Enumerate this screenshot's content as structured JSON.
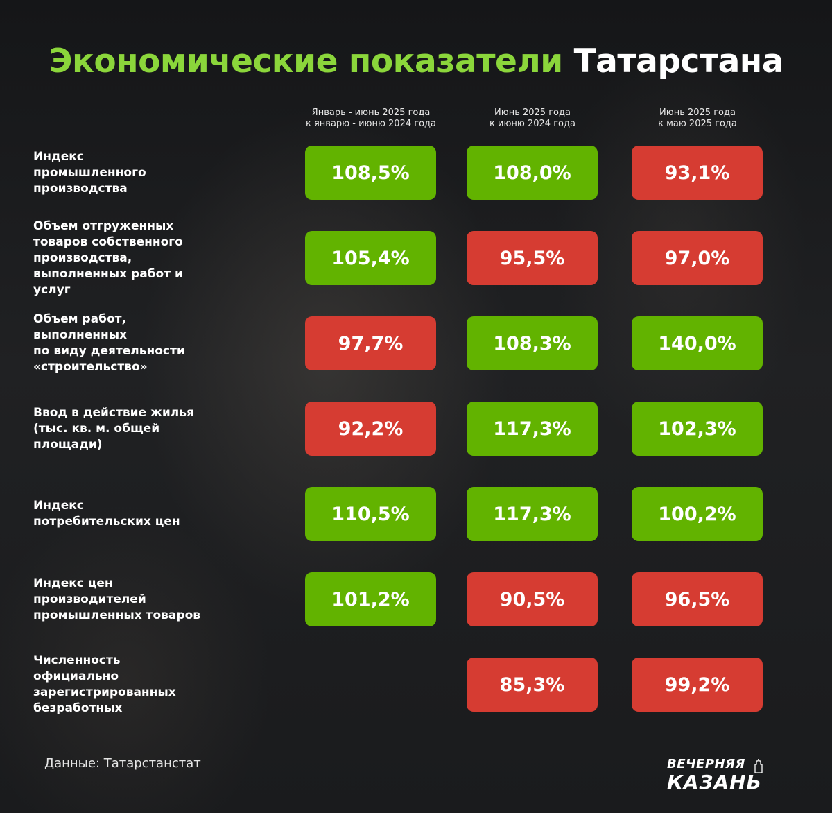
{
  "title": {
    "part1": "Экономические показатели",
    "part2": "Татарстана"
  },
  "colors": {
    "green": "#62b300",
    "red": "#d63c32",
    "title_green": "#8bd63b"
  },
  "chart_data": {
    "type": "table",
    "title": "Экономические показатели Татарстана",
    "columns": [
      {
        "line1": "Январь - июнь 2025 года",
        "line2": "к январю - июню 2024 года"
      },
      {
        "line1": "Июнь 2025 года",
        "line2": "к июню 2024 года"
      },
      {
        "line1": "Июнь 2025 года",
        "line2": "к маю 2025 года"
      }
    ],
    "rows": [
      {
        "label": "Индекс\nпромышленного\nпроизводства",
        "cells": [
          {
            "text": "108,5%",
            "status": "green"
          },
          {
            "text": "108,0%",
            "status": "green"
          },
          {
            "text": "93,1%",
            "status": "red"
          }
        ]
      },
      {
        "label": "Объем отгруженных\nтоваров собственного\nпроизводства,\nвыполненных работ и\nуслуг",
        "cells": [
          {
            "text": "105,4%",
            "status": "green"
          },
          {
            "text": "95,5%",
            "status": "red"
          },
          {
            "text": "97,0%",
            "status": "red"
          }
        ]
      },
      {
        "label": "Объем работ,\nвыполненных\nпо виду деятельности\n«строительство»",
        "cells": [
          {
            "text": "97,7%",
            "status": "red"
          },
          {
            "text": "108,3%",
            "status": "green"
          },
          {
            "text": "140,0%",
            "status": "green"
          }
        ]
      },
      {
        "label": "Ввод в действие жилья\n(тыс. кв. м. общей\nплощади)",
        "cells": [
          {
            "text": "92,2%",
            "status": "red"
          },
          {
            "text": "117,3%",
            "status": "green"
          },
          {
            "text": "102,3%",
            "status": "green"
          }
        ]
      },
      {
        "label": "Индекс\nпотребительских цен",
        "cells": [
          {
            "text": "110,5%",
            "status": "green"
          },
          {
            "text": "117,3%",
            "status": "green"
          },
          {
            "text": "100,2%",
            "status": "green"
          }
        ]
      },
      {
        "label": "Индекс цен\nпроизводителей\nпромышленных товаров",
        "cells": [
          {
            "text": "101,2%",
            "status": "green"
          },
          {
            "text": "90,5%",
            "status": "red"
          },
          {
            "text": "96,5%",
            "status": "red"
          }
        ]
      },
      {
        "label": "Численность\nофициально\nзарегистрированных\nбезработных",
        "cells": [
          null,
          {
            "text": "85,3%",
            "status": "red"
          },
          {
            "text": "99,2%",
            "status": "red"
          }
        ]
      }
    ]
  },
  "footer": {
    "source": "Данные: Татарстанстат",
    "logo_line1": "ВЕЧЕРНЯЯ",
    "logo_line2": "КАЗАНЬ"
  }
}
